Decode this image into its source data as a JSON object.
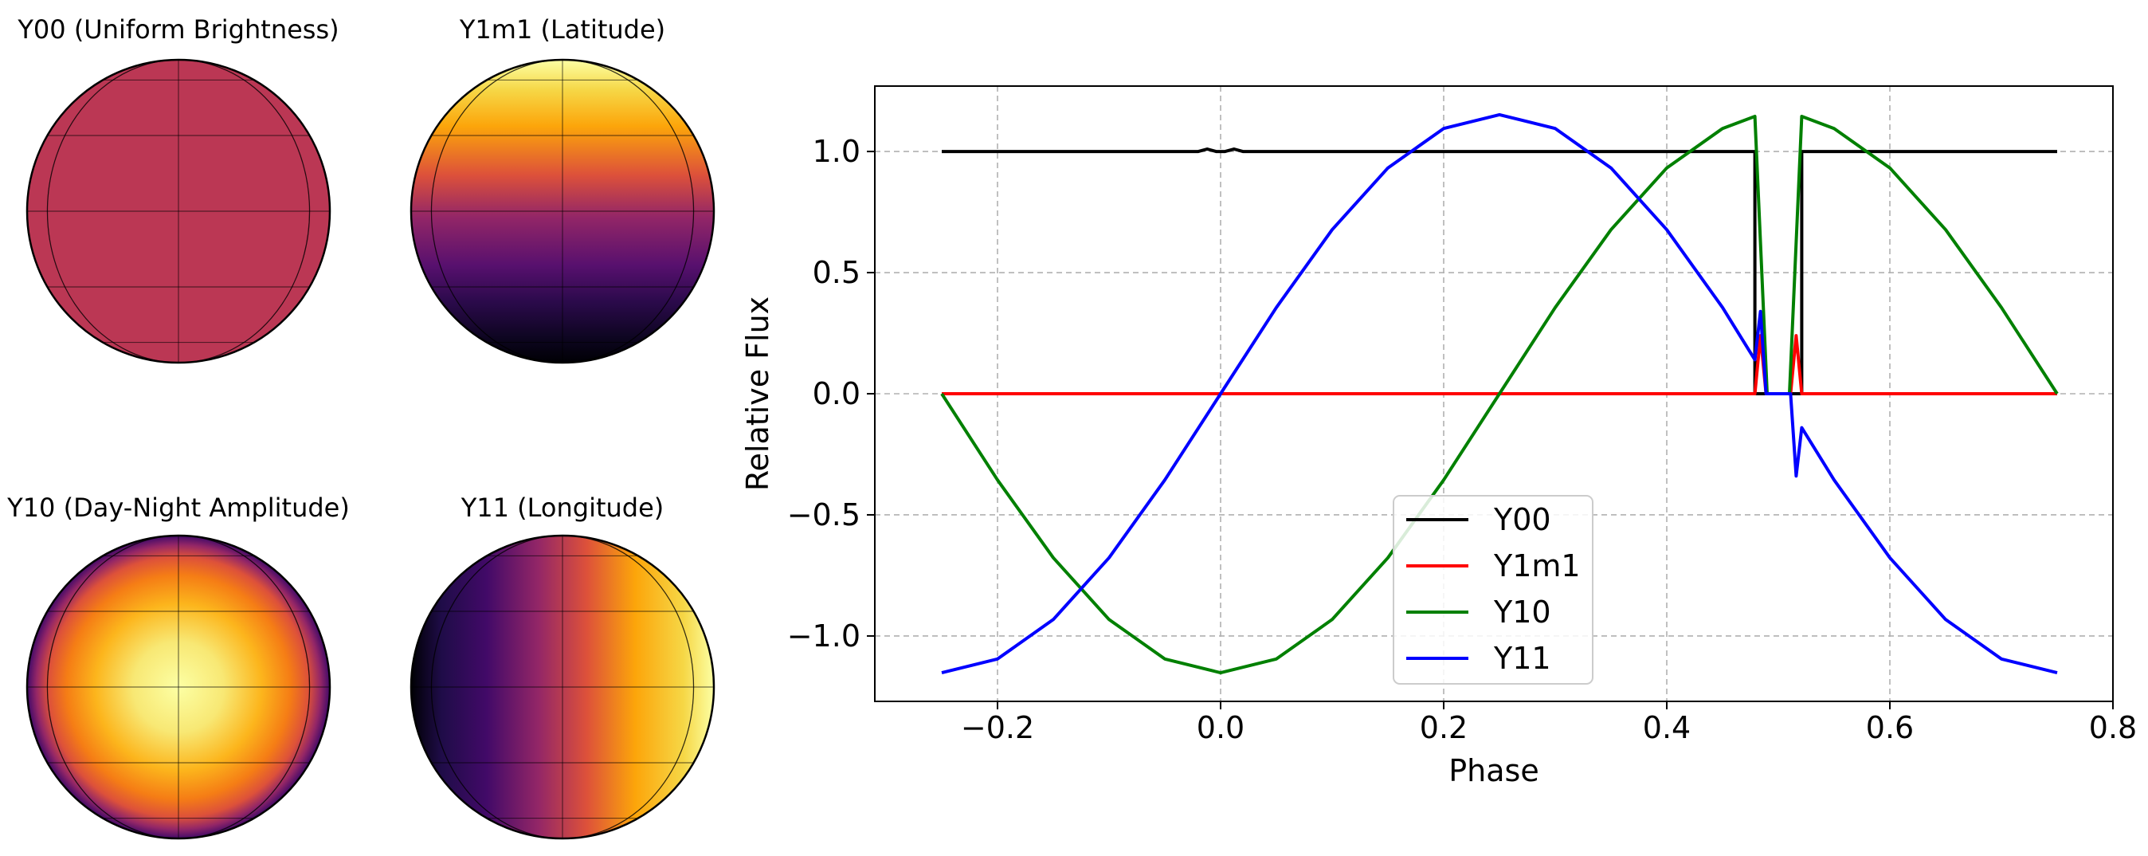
{
  "maps": [
    {
      "title": "Y00 (Uniform Brightness)",
      "pattern": "uniform"
    },
    {
      "title": "Y1m1 (Latitude)",
      "pattern": "latitude"
    },
    {
      "title": "Y10 (Day-Night Amplitude)",
      "pattern": "radial"
    },
    {
      "title": "Y11 (Longitude)",
      "pattern": "longitude"
    }
  ],
  "colors": {
    "uniform": "#bb3754",
    "inferno_dark": "#000004",
    "inferno_purple": "#420a68",
    "inferno_magenta": "#932667",
    "inferno_red": "#dd513a",
    "inferno_orange": "#fca50a",
    "inferno_light": "#fcffa4",
    "grid": "#b0b0b0"
  },
  "chart_data": {
    "type": "line",
    "xlabel": "Phase",
    "ylabel": "Relative Flux",
    "xlim": [
      -0.31,
      0.8
    ],
    "ylim": [
      -1.27,
      1.27
    ],
    "xticks": [
      -0.2,
      0.0,
      0.2,
      0.4,
      0.6,
      0.8
    ],
    "xtick_labels": [
      "−0.2",
      "0.0",
      "0.2",
      "0.4",
      "0.6",
      "0.8"
    ],
    "yticks": [
      1.0,
      0.5,
      0.0,
      -0.5,
      -1.0
    ],
    "ytick_labels": [
      "1.0",
      "0.5",
      "0.0",
      "−0.5",
      "−1.0"
    ],
    "grid": true,
    "legend_position": "lower-center",
    "series": [
      {
        "name": "Y00",
        "color": "#000000",
        "points": [
          [
            -0.25,
            1.0
          ],
          [
            -0.02,
            1.0
          ],
          [
            -0.012,
            1.01
          ],
          [
            -0.004,
            1.0
          ],
          [
            0.004,
            1.0
          ],
          [
            0.012,
            1.01
          ],
          [
            0.02,
            1.0
          ],
          [
            0.479,
            1.0
          ],
          [
            0.479,
            0.0
          ],
          [
            0.521,
            0.0
          ],
          [
            0.521,
            1.0
          ],
          [
            0.75,
            1.0
          ]
        ]
      },
      {
        "name": "Y1m1",
        "color": "#ff0000",
        "points": [
          [
            -0.25,
            0.0
          ],
          [
            0.479,
            0.0
          ],
          [
            0.484,
            0.24
          ],
          [
            0.489,
            0.0
          ],
          [
            0.511,
            0.0
          ],
          [
            0.516,
            0.24
          ],
          [
            0.521,
            0.0
          ],
          [
            0.75,
            0.0
          ]
        ]
      },
      {
        "name": "Y10",
        "color": "#008000",
        "points": [
          [
            -0.25,
            0.0
          ],
          [
            -0.2,
            -0.356
          ],
          [
            -0.15,
            -0.677
          ],
          [
            -0.1,
            -0.932
          ],
          [
            -0.05,
            -1.095
          ],
          [
            0.0,
            -1.152
          ],
          [
            0.05,
            -1.095
          ],
          [
            0.1,
            -0.932
          ],
          [
            0.15,
            -0.677
          ],
          [
            0.2,
            -0.356
          ],
          [
            0.25,
            0.0
          ],
          [
            0.3,
            0.356
          ],
          [
            0.35,
            0.677
          ],
          [
            0.4,
            0.932
          ],
          [
            0.45,
            1.095
          ],
          [
            0.479,
            1.145
          ],
          [
            0.49,
            0.0
          ],
          [
            0.51,
            0.0
          ],
          [
            0.521,
            1.145
          ],
          [
            0.55,
            1.095
          ],
          [
            0.6,
            0.932
          ],
          [
            0.65,
            0.677
          ],
          [
            0.7,
            0.356
          ],
          [
            0.75,
            0.0
          ]
        ]
      },
      {
        "name": "Y11",
        "color": "#0000ff",
        "points": [
          [
            -0.25,
            -1.152
          ],
          [
            -0.2,
            -1.095
          ],
          [
            -0.15,
            -0.932
          ],
          [
            -0.1,
            -0.677
          ],
          [
            -0.05,
            -0.356
          ],
          [
            0.0,
            0.0
          ],
          [
            0.05,
            0.356
          ],
          [
            0.1,
            0.677
          ],
          [
            0.15,
            0.932
          ],
          [
            0.2,
            1.095
          ],
          [
            0.25,
            1.152
          ],
          [
            0.3,
            1.095
          ],
          [
            0.35,
            0.932
          ],
          [
            0.4,
            0.677
          ],
          [
            0.45,
            0.356
          ],
          [
            0.479,
            0.14
          ],
          [
            0.484,
            0.34
          ],
          [
            0.489,
            0.0
          ],
          [
            0.511,
            0.0
          ],
          [
            0.516,
            -0.34
          ],
          [
            0.521,
            -0.14
          ],
          [
            0.55,
            -0.356
          ],
          [
            0.6,
            -0.677
          ],
          [
            0.65,
            -0.932
          ],
          [
            0.7,
            -1.095
          ],
          [
            0.75,
            -1.152
          ]
        ]
      }
    ]
  }
}
